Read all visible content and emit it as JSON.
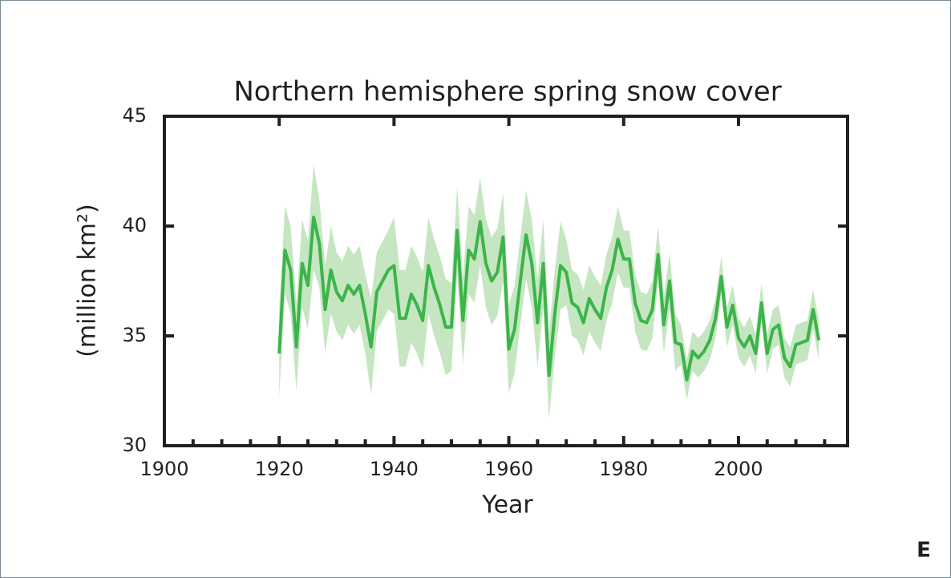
{
  "chart_data": {
    "type": "line",
    "title": "Northern hemisphere spring snow cover",
    "x_label": "Year",
    "y_label": "(million km²)",
    "corner_label": "E",
    "xlim": [
      1900,
      2019
    ],
    "ylim": [
      30,
      45
    ],
    "xticks": [
      1900,
      1920,
      1940,
      1960,
      1980,
      2000
    ],
    "x_minor_ticks": [
      1905,
      1910,
      1915,
      1925,
      1930,
      1935,
      1945,
      1950,
      1955,
      1965,
      1970,
      1975,
      1985,
      1990,
      1995,
      2005,
      2010,
      2015
    ],
    "yticks": [
      30,
      35,
      40,
      45
    ],
    "color": "#3cb44a",
    "band_color": "#c6e6c2",
    "x": [
      1920,
      1921,
      1922,
      1923,
      1924,
      1925,
      1926,
      1927,
      1928,
      1929,
      1930,
      1931,
      1932,
      1933,
      1934,
      1935,
      1936,
      1937,
      1938,
      1939,
      1940,
      1941,
      1942,
      1943,
      1944,
      1945,
      1946,
      1947,
      1948,
      1949,
      1950,
      1951,
      1952,
      1953,
      1954,
      1955,
      1956,
      1957,
      1958,
      1959,
      1960,
      1961,
      1962,
      1963,
      1964,
      1965,
      1966,
      1967,
      1968,
      1969,
      1970,
      1971,
      1972,
      1973,
      1974,
      1975,
      1976,
      1977,
      1978,
      1979,
      1980,
      1981,
      1982,
      1983,
      1984,
      1985,
      1986,
      1987,
      1988,
      1989,
      1990,
      1991,
      1992,
      1993,
      1994,
      1995,
      1996,
      1997,
      1998,
      1999,
      2000,
      2001,
      2002,
      2003,
      2004,
      2005,
      2006,
      2007,
      2008,
      2009,
      2010,
      2011,
      2012,
      2013,
      2014
    ],
    "values": [
      34.2,
      38.9,
      38.0,
      34.5,
      38.3,
      37.3,
      40.4,
      39.2,
      36.2,
      38.0,
      37.0,
      36.6,
      37.3,
      36.9,
      37.3,
      36.0,
      34.5,
      37.0,
      37.5,
      38.0,
      38.2,
      35.8,
      35.8,
      36.9,
      36.4,
      35.7,
      38.2,
      37.2,
      36.4,
      35.4,
      35.4,
      39.8,
      35.7,
      38.9,
      38.5,
      40.2,
      38.3,
      37.5,
      37.9,
      39.5,
      34.4,
      35.3,
      37.5,
      39.6,
      38.3,
      35.6,
      38.3,
      33.2,
      36.0,
      38.2,
      37.9,
      36.5,
      36.3,
      35.6,
      36.7,
      36.2,
      35.8,
      37.2,
      38.0,
      39.4,
      38.5,
      38.5,
      36.5,
      35.7,
      35.6,
      36.2,
      38.7,
      35.5,
      37.5,
      34.7,
      34.6,
      33.0,
      34.3,
      34.0,
      34.3,
      34.8,
      35.8,
      37.7,
      35.4,
      36.4,
      34.9,
      34.5,
      35.0,
      34.2,
      36.5,
      34.2,
      35.3,
      35.5,
      34.0,
      33.6,
      34.6,
      34.7,
      34.8,
      36.2,
      34.8
    ],
    "upper": [
      36.2,
      40.9,
      40.0,
      36.5,
      40.3,
      39.3,
      42.8,
      41.2,
      38.2,
      40.0,
      38.8,
      38.4,
      39.1,
      38.7,
      39.1,
      37.8,
      36.7,
      38.8,
      39.3,
      39.8,
      40.4,
      38.0,
      38.0,
      39.1,
      38.6,
      37.9,
      40.4,
      39.4,
      38.6,
      37.6,
      37.4,
      41.8,
      37.7,
      40.9,
      40.5,
      42.2,
      40.3,
      39.5,
      39.9,
      41.5,
      36.4,
      37.3,
      39.5,
      41.6,
      40.3,
      37.6,
      40.3,
      35.2,
      38.0,
      40.2,
      39.4,
      38.0,
      37.8,
      37.1,
      38.2,
      37.7,
      37.3,
      38.7,
      39.5,
      40.9,
      39.8,
      39.8,
      37.8,
      37.0,
      36.9,
      37.5,
      40.0,
      36.8,
      38.8,
      36.0,
      35.5,
      33.9,
      35.2,
      34.9,
      35.2,
      35.7,
      36.7,
      38.6,
      36.3,
      37.3,
      35.8,
      35.4,
      35.9,
      35.1,
      37.4,
      35.1,
      36.2,
      36.4,
      34.9,
      34.5,
      35.5,
      35.6,
      35.7,
      37.1,
      35.7
    ],
    "lower": [
      32.2,
      36.9,
      36.0,
      32.5,
      36.3,
      35.3,
      38.0,
      37.2,
      34.2,
      36.0,
      35.2,
      34.8,
      35.5,
      35.1,
      35.5,
      34.2,
      32.3,
      35.2,
      35.7,
      36.2,
      36.0,
      33.6,
      33.6,
      34.7,
      34.2,
      33.5,
      36.0,
      35.0,
      34.2,
      33.2,
      33.4,
      37.8,
      33.7,
      36.9,
      36.5,
      38.2,
      36.3,
      35.5,
      35.9,
      37.5,
      32.4,
      33.3,
      35.5,
      37.6,
      36.3,
      33.6,
      36.3,
      31.2,
      34.0,
      36.2,
      36.4,
      35.0,
      34.8,
      34.1,
      35.2,
      34.7,
      34.3,
      35.7,
      36.5,
      37.9,
      37.2,
      37.2,
      35.2,
      34.4,
      34.3,
      34.9,
      37.4,
      34.2,
      36.2,
      33.4,
      33.7,
      32.1,
      33.4,
      33.1,
      33.4,
      33.9,
      34.9,
      36.8,
      34.5,
      35.5,
      34.0,
      33.6,
      34.1,
      33.3,
      35.6,
      33.3,
      34.4,
      34.6,
      33.1,
      32.7,
      33.7,
      33.8,
      33.9,
      35.3,
      33.9
    ]
  }
}
